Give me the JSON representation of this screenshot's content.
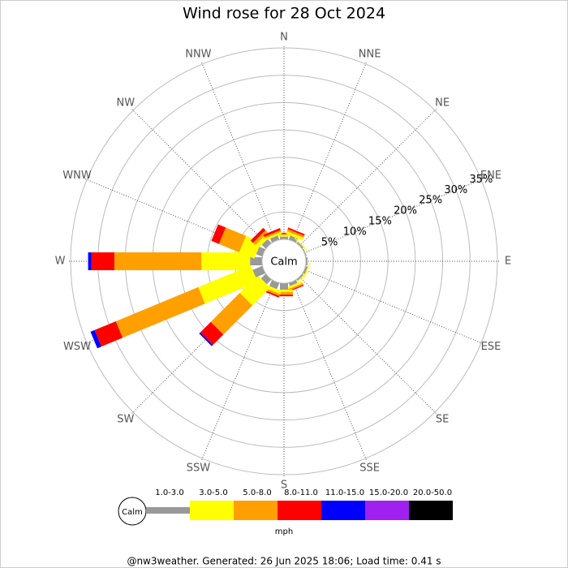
{
  "chart_data": {
    "type": "windrose",
    "title": "Wind rose for 28 Oct 2024",
    "calm_label": "Calm",
    "unit_label": "mph",
    "footer": "@nw3weather. Generated: 26 Jun 2025 18:06; Load time: 0.41 s",
    "categories": [
      "N",
      "NNE",
      "NE",
      "ENE",
      "E",
      "ESE",
      "SE",
      "SSE",
      "S",
      "SSW",
      "SW",
      "WSW",
      "W",
      "WNW",
      "NW",
      "NNW"
    ],
    "ylim": [
      0,
      35
    ],
    "yticks": [
      {
        "value": 5,
        "label": "5%"
      },
      {
        "value": 10,
        "label": "10%"
      },
      {
        "value": 15,
        "label": "15%"
      },
      {
        "value": 20,
        "label": "20%"
      },
      {
        "value": 25,
        "label": "25%"
      },
      {
        "value": 30,
        "label": "30%"
      },
      {
        "value": 35,
        "label": "35%"
      }
    ],
    "series": [
      {
        "name": "1.0-3.0",
        "color": "#999999",
        "values": [
          0.5,
          0.8,
          0.3,
          0.2,
          0.3,
          0.4,
          0.3,
          0.6,
          1.2,
          1.2,
          1.2,
          1.9,
          2.2,
          1.2,
          1.0,
          0.8
        ]
      },
      {
        "name": "3.0-5.0",
        "color": "#ffff00",
        "values": [
          0.3,
          0.5,
          0.2,
          0,
          0,
          0.2,
          0.2,
          0.4,
          0.4,
          0.6,
          4.6,
          10.4,
          8.9,
          3.0,
          0.8,
          0.4
        ]
      },
      {
        "name": "5.0-8.0",
        "color": "#ffa000",
        "values": [
          0.2,
          0.4,
          0,
          0,
          0,
          0,
          0,
          0.3,
          0.5,
          0.4,
          7.5,
          16.3,
          15.9,
          4.0,
          0.6,
          0.3
        ]
      },
      {
        "name": "8.0-11.0",
        "color": "#ff0000",
        "values": [
          0.2,
          0.3,
          0,
          0,
          0,
          0,
          0,
          0.2,
          0.3,
          0.3,
          2.7,
          4.2,
          4.2,
          1.5,
          0.6,
          0.4
        ]
      },
      {
        "name": "11.0-15.0",
        "color": "#0000ff",
        "values": [
          0,
          0,
          0,
          0,
          0,
          0,
          0,
          0,
          0,
          0,
          0.3,
          0.8,
          0.6,
          0,
          0,
          0
        ]
      },
      {
        "name": "15.0-20.0",
        "color": "#a020f0",
        "values": [
          0,
          0,
          0,
          0,
          0,
          0,
          0,
          0,
          0,
          0,
          0,
          0,
          0,
          0,
          0,
          0
        ]
      },
      {
        "name": "20.0-50.0",
        "color": "#000000",
        "values": [
          0,
          0,
          0,
          0,
          0,
          0,
          0,
          0,
          0,
          0,
          0,
          0,
          0,
          0,
          0,
          0
        ]
      }
    ]
  }
}
